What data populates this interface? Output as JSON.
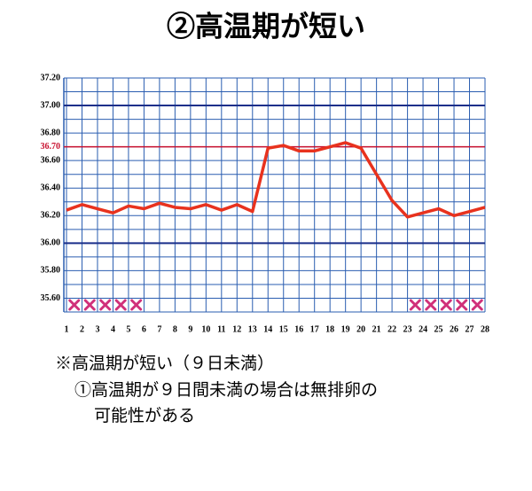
{
  "chart_data": {
    "type": "line",
    "title": "②高温期が短い",
    "x": [
      1,
      2,
      3,
      4,
      5,
      6,
      7,
      8,
      9,
      10,
      11,
      12,
      13,
      14,
      15,
      16,
      17,
      18,
      19,
      20,
      21,
      22,
      23,
      24,
      25,
      26,
      27,
      28
    ],
    "series": [
      {
        "color": "#e8321e",
        "values": [
          36.24,
          36.28,
          36.25,
          36.22,
          36.27,
          36.25,
          36.29,
          36.26,
          36.25,
          36.28,
          36.24,
          36.28,
          36.23,
          36.69,
          36.71,
          36.67,
          36.67,
          36.7,
          36.73,
          36.69,
          36.5,
          36.31,
          36.19,
          36.22,
          36.25,
          36.2,
          36.23,
          36.26
        ]
      }
    ],
    "xlim": [
      1,
      28
    ],
    "ylim": [
      35.5,
      37.2
    ],
    "yticks": [
      {
        "value": 35.6,
        "label": "35.60"
      },
      {
        "value": 35.8,
        "label": "35.80"
      },
      {
        "value": 36.0,
        "label": "36.00"
      },
      {
        "value": 36.2,
        "label": "36.20"
      },
      {
        "value": 36.4,
        "label": "36.40"
      },
      {
        "value": 36.6,
        "label": "36.60"
      },
      {
        "value": 36.8,
        "label": "36.80"
      },
      {
        "value": 37.0,
        "label": "37.00"
      },
      {
        "value": 37.2,
        "label": "37.20"
      }
    ],
    "grid_y": [
      35.5,
      35.6,
      35.7,
      35.8,
      35.9,
      36.0,
      36.1,
      36.2,
      36.3,
      36.4,
      36.5,
      36.6,
      36.7,
      36.8,
      36.9,
      37.0,
      37.1,
      37.2
    ],
    "grid_color": "#2a5db0",
    "major_lines": [
      36.0,
      37.0
    ],
    "threshold": {
      "value": 36.7,
      "label": "36.70",
      "color": "#c8102e"
    },
    "crossed_days": [
      1,
      2,
      3,
      4,
      5,
      23,
      24,
      25,
      26,
      27
    ],
    "cross_color": "#d0307a",
    "notes": [
      "※高温期が短い（９日未満）",
      "①高温期が９日間未満の場合は無排卵の",
      "可能性がある"
    ]
  }
}
